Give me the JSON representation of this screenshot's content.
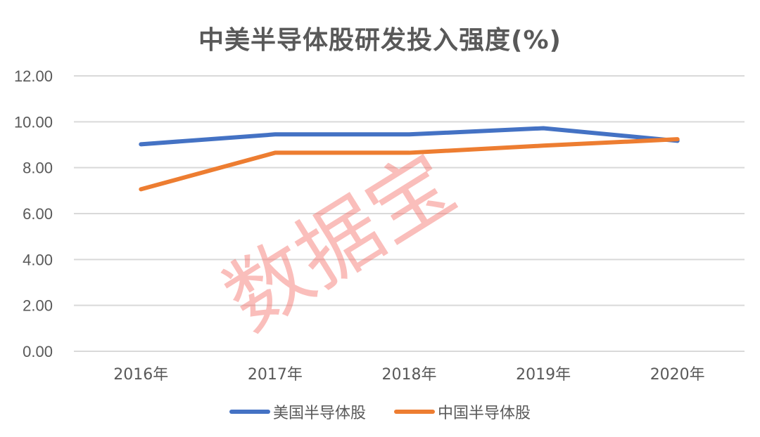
{
  "title": "中美半导体股研发投入强度(%)",
  "watermark": "数据宝",
  "legend": [
    {
      "label": "美国半导体股",
      "color": "#4472C4"
    },
    {
      "label": "中国半导体股",
      "color": "#ED7D31"
    }
  ],
  "chart_data": {
    "type": "line",
    "title": "中美半导体股研发投入强度(%)",
    "xlabel": "",
    "ylabel": "",
    "categories": [
      "2016年",
      "2017年",
      "2018年",
      "2019年",
      "2020年"
    ],
    "series": [
      {
        "name": "美国半导体股",
        "color": "#4472C4",
        "values": [
          9.02,
          9.45,
          9.45,
          9.72,
          9.17
        ]
      },
      {
        "name": "中国半导体股",
        "color": "#ED7D31",
        "values": [
          7.06,
          8.65,
          8.65,
          8.96,
          9.24
        ]
      }
    ],
    "ylim": [
      0,
      12
    ],
    "yticks": [
      "0.00",
      "2.00",
      "4.00",
      "6.00",
      "8.00",
      "10.00",
      "12.00"
    ],
    "grid": true,
    "legend_position": "bottom"
  }
}
